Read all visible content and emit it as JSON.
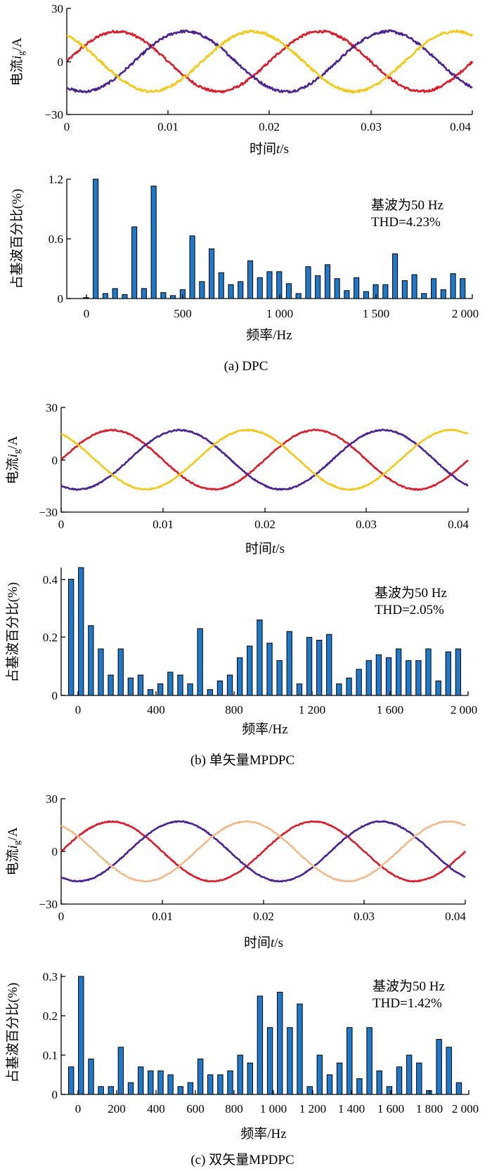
{
  "panels": [
    {
      "caption": "(a) DPC",
      "current_plot": {
        "ylabel_main": "电流",
        "ylabel_var": "i",
        "ylabel_sub": "g",
        "ylabel_unit": "/A",
        "xlabel_main": "时间",
        "xlabel_var": "t",
        "xlabel_unit": "/s",
        "yticks": [
          "30",
          "0",
          "−30"
        ],
        "xticks": [
          "0",
          "0.01",
          "0.02",
          "0.03",
          "0.04"
        ]
      },
      "harmonic_plot": {
        "ylabel": "占基波百分比(%)",
        "xlabel": "频率/Hz",
        "yticks": [
          "1.2",
          "0.6",
          "0"
        ],
        "xticks": [
          "0",
          "500",
          "1 000",
          "1 500",
          "2 000"
        ],
        "annotation_1": "基波为50 Hz",
        "annotation_2": "THD=4.23%"
      }
    },
    {
      "caption": "(b) 单矢量MPDPC",
      "current_plot": {
        "ylabel_main": "电流",
        "ylabel_var": "i",
        "ylabel_sub": "g",
        "ylabel_unit": "/A",
        "xlabel_main": "时间",
        "xlabel_var": "t",
        "xlabel_unit": "/s",
        "yticks": [
          "30",
          "0",
          "−30"
        ],
        "xticks": [
          "0",
          "0.01",
          "0.02",
          "0.03",
          "0.04"
        ]
      },
      "harmonic_plot": {
        "ylabel": "占基波百分比(%)",
        "xlabel": "频率/Hz",
        "yticks": [
          "0.4",
          "0.2",
          "0"
        ],
        "xticks": [
          "0",
          "400",
          "800",
          "1 200",
          "1 600",
          "2 000"
        ],
        "annotation_1": "基波为50 Hz",
        "annotation_2": "THD=2.05%"
      }
    },
    {
      "caption": "(c) 双矢量MPDPC",
      "current_plot": {
        "ylabel_main": "电流",
        "ylabel_var": "i",
        "ylabel_sub": "g",
        "ylabel_unit": "/A",
        "xlabel_main": "时间",
        "xlabel_var": "t",
        "xlabel_unit": "/s",
        "yticks": [
          "30",
          "0",
          "−30"
        ],
        "xticks": [
          "0",
          "0.01",
          "0.02",
          "0.03",
          "0.04"
        ]
      },
      "harmonic_plot": {
        "ylabel": "占基波百分比(%)",
        "xlabel": "频率/Hz",
        "yticks": [
          "0.3",
          "0.2",
          "0.1",
          "0"
        ],
        "xticks": [
          "0",
          "200",
          "400",
          "600",
          "800",
          "1 000",
          "1 200",
          "1 400",
          "1 600",
          "1 800",
          "2 000"
        ],
        "annotation_1": "基波为50 Hz",
        "annotation_2": "THD=1.42%"
      }
    }
  ],
  "chart_data": [
    {
      "type": "line",
      "panel": "a",
      "x_range": [
        0,
        0.04
      ],
      "ylim": [
        -30,
        30
      ],
      "series": [
        {
          "amplitude": 17,
          "frequency_hz": 50,
          "phase_deg": 0,
          "noise": 0.7,
          "color": "#d91d2a"
        },
        {
          "amplitude": 17,
          "frequency_hz": 50,
          "phase_deg": -120,
          "noise": 0.7,
          "color": "#4b2290"
        },
        {
          "amplitude": 17,
          "frequency_hz": 50,
          "phase_deg": 120,
          "noise": 0.7,
          "color": "#f2c81a"
        }
      ]
    },
    {
      "type": "bar",
      "panel": "a",
      "x_range": [
        -100,
        2000
      ],
      "ylim": [
        0,
        1.2
      ],
      "bar_width_hz": 26,
      "x": [
        0,
        50,
        100,
        150,
        200,
        250,
        300,
        350,
        400,
        450,
        500,
        550,
        600,
        650,
        700,
        750,
        800,
        850,
        900,
        950,
        1000,
        1050,
        1100,
        1150,
        1200,
        1250,
        1300,
        1350,
        1400,
        1450,
        1500,
        1550,
        1600,
        1650,
        1700,
        1750,
        1800,
        1850,
        1900,
        1950
      ],
      "values": [
        0.01,
        1.2,
        0.05,
        0.1,
        0.04,
        0.72,
        0.1,
        1.13,
        0.06,
        0.03,
        0.09,
        0.63,
        0.17,
        0.5,
        0.26,
        0.14,
        0.17,
        0.38,
        0.21,
        0.27,
        0.27,
        0.15,
        0.05,
        0.32,
        0.23,
        0.34,
        0.2,
        0.08,
        0.21,
        0.07,
        0.14,
        0.14,
        0.45,
        0.18,
        0.24,
        0.05,
        0.2,
        0.09,
        0.25,
        0.2
      ]
    },
    {
      "type": "line",
      "panel": "b",
      "x_range": [
        0,
        0.04
      ],
      "ylim": [
        -30,
        30
      ],
      "series": [
        {
          "amplitude": 17,
          "frequency_hz": 50,
          "phase_deg": 0,
          "noise": 0.35,
          "color": "#d91d2a"
        },
        {
          "amplitude": 17,
          "frequency_hz": 50,
          "phase_deg": -120,
          "noise": 0.35,
          "color": "#4b2290"
        },
        {
          "amplitude": 17,
          "frequency_hz": 50,
          "phase_deg": 120,
          "noise": 0.35,
          "color": "#f2c81a"
        }
      ]
    },
    {
      "type": "bar",
      "panel": "b",
      "x_range": [
        -50,
        2000
      ],
      "ylim": [
        0,
        0.44
      ],
      "bar_width_hz": 26,
      "x": [
        0,
        50,
        100,
        150,
        200,
        250,
        300,
        350,
        400,
        450,
        500,
        550,
        600,
        650,
        700,
        750,
        800,
        850,
        900,
        950,
        1000,
        1050,
        1100,
        1150,
        1200,
        1250,
        1300,
        1350,
        1400,
        1450,
        1500,
        1550,
        1600,
        1650,
        1700,
        1750,
        1800,
        1850,
        1900,
        1950
      ],
      "values": [
        0.4,
        0.44,
        0.24,
        0.16,
        0.07,
        0.16,
        0.06,
        0.07,
        0.02,
        0.04,
        0.08,
        0.07,
        0.04,
        0.23,
        0.02,
        0.05,
        0.07,
        0.13,
        0.17,
        0.26,
        0.18,
        0.12,
        0.22,
        0.04,
        0.2,
        0.19,
        0.21,
        0.04,
        0.06,
        0.09,
        0.12,
        0.14,
        0.13,
        0.16,
        0.12,
        0.12,
        0.16,
        0.05,
        0.15,
        0.16
      ]
    },
    {
      "type": "line",
      "panel": "c",
      "x_range": [
        0,
        0.04
      ],
      "ylim": [
        -30,
        30
      ],
      "series": [
        {
          "amplitude": 17,
          "frequency_hz": 50,
          "phase_deg": 0,
          "noise": 0.3,
          "color": "#d91d2a"
        },
        {
          "amplitude": 17,
          "frequency_hz": 50,
          "phase_deg": -120,
          "noise": 0.3,
          "color": "#4b2290"
        },
        {
          "amplitude": 17,
          "frequency_hz": 50,
          "phase_deg": 120,
          "noise": 0.3,
          "color": "#f0bb8c"
        }
      ]
    },
    {
      "type": "bar",
      "panel": "c",
      "x_range": [
        -50,
        2000
      ],
      "ylim": [
        0,
        0.3
      ],
      "bar_width_hz": 26,
      "x": [
        0,
        50,
        100,
        150,
        200,
        250,
        300,
        350,
        400,
        450,
        500,
        550,
        600,
        650,
        700,
        750,
        800,
        850,
        900,
        950,
        1000,
        1050,
        1100,
        1150,
        1200,
        1250,
        1300,
        1350,
        1400,
        1450,
        1500,
        1550,
        1600,
        1650,
        1700,
        1750,
        1800,
        1850,
        1900,
        1950
      ],
      "values": [
        0.07,
        0.3,
        0.09,
        0.02,
        0.02,
        0.12,
        0.03,
        0.07,
        0.06,
        0.06,
        0.05,
        0.02,
        0.03,
        0.09,
        0.05,
        0.05,
        0.06,
        0.1,
        0.08,
        0.25,
        0.17,
        0.26,
        0.17,
        0.23,
        0.02,
        0.1,
        0.05,
        0.08,
        0.17,
        0.04,
        0.17,
        0.06,
        0.02,
        0.07,
        0.1,
        0.08,
        0.01,
        0.14,
        0.12,
        0.03
      ]
    }
  ]
}
